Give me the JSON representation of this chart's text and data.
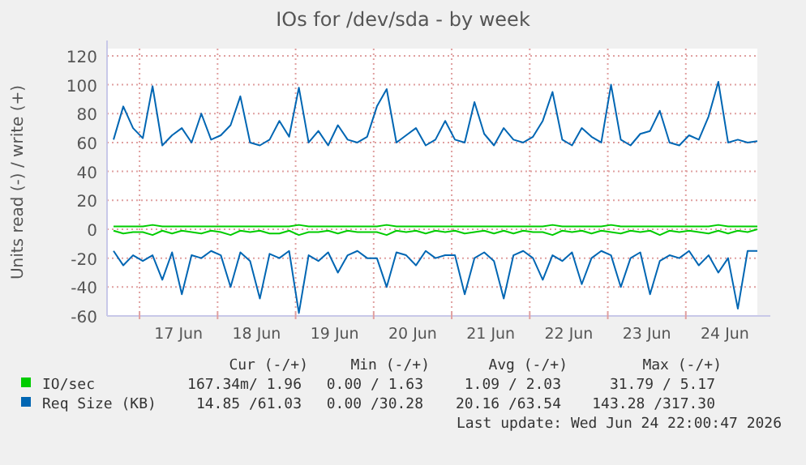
{
  "chart_data": {
    "type": "line",
    "title": "IOs for /dev/sda - by week",
    "ylabel": "Units read (-) / write (+)",
    "x": [
      "2026-06-16T16:00",
      "2026-06-16T19:00",
      "2026-06-16T22:00",
      "2026-06-17T01:00",
      "2026-06-17T04:00",
      "2026-06-17T07:00",
      "2026-06-17T10:00",
      "2026-06-17T13:00",
      "2026-06-17T16:00",
      "2026-06-17T19:00",
      "2026-06-17T22:00",
      "2026-06-18T01:00",
      "2026-06-18T04:00",
      "2026-06-18T07:00",
      "2026-06-18T10:00",
      "2026-06-18T13:00",
      "2026-06-18T16:00",
      "2026-06-18T19:00",
      "2026-06-18T22:00",
      "2026-06-19T01:00",
      "2026-06-19T04:00",
      "2026-06-19T07:00",
      "2026-06-19T10:00",
      "2026-06-19T13:00",
      "2026-06-19T16:00",
      "2026-06-19T19:00",
      "2026-06-19T22:00",
      "2026-06-20T01:00",
      "2026-06-20T04:00",
      "2026-06-20T07:00",
      "2026-06-20T10:00",
      "2026-06-20T13:00",
      "2026-06-20T16:00",
      "2026-06-20T19:00",
      "2026-06-20T22:00",
      "2026-06-21T01:00",
      "2026-06-21T04:00",
      "2026-06-21T07:00",
      "2026-06-21T10:00",
      "2026-06-21T13:00",
      "2026-06-21T16:00",
      "2026-06-21T19:00",
      "2026-06-21T22:00",
      "2026-06-22T01:00",
      "2026-06-22T04:00",
      "2026-06-22T07:00",
      "2026-06-22T10:00",
      "2026-06-22T13:00",
      "2026-06-22T16:00",
      "2026-06-22T19:00",
      "2026-06-22T22:00",
      "2026-06-23T01:00",
      "2026-06-23T04:00",
      "2026-06-23T07:00",
      "2026-06-23T10:00",
      "2026-06-23T13:00",
      "2026-06-23T16:00",
      "2026-06-23T19:00",
      "2026-06-23T22:00",
      "2026-06-24T01:00",
      "2026-06-24T04:00",
      "2026-06-24T07:00",
      "2026-06-24T10:00",
      "2026-06-24T13:00",
      "2026-06-24T16:00",
      "2026-06-24T19:00",
      "2026-06-24T22:00"
    ],
    "series": [
      {
        "name": "IO/sec",
        "color": "#00cc00",
        "values": [
          2,
          2,
          2,
          2,
          3,
          2,
          2,
          2,
          2,
          2,
          2,
          2,
          2,
          2,
          2,
          2,
          2,
          2,
          2,
          3,
          2,
          2,
          2,
          2,
          2,
          2,
          2,
          2,
          3,
          2,
          2,
          2,
          2,
          2,
          2,
          2,
          2,
          2,
          2,
          2,
          2,
          2,
          2,
          2,
          2,
          3,
          2,
          2,
          2,
          2,
          2,
          3,
          2,
          2,
          2,
          2,
          2,
          2,
          2,
          2,
          2,
          2,
          3,
          2,
          2,
          2,
          2
        ]
      },
      {
        "color": "#00cc00",
        "values": [
          -1,
          -3,
          -2,
          -2,
          -4,
          -1,
          -3,
          -1,
          -2,
          -3,
          -1,
          -2,
          -4,
          -1,
          -2,
          -1,
          -3,
          -3,
          -1,
          -4,
          -2,
          -2,
          -1,
          -3,
          -1,
          -2,
          -2,
          -2,
          -4,
          -1,
          -2,
          -1,
          -3,
          -1,
          -2,
          -1,
          -3,
          -2,
          -1,
          -3,
          -1,
          -3,
          -1,
          -2,
          -2,
          -4,
          -1,
          -2,
          -1,
          -3,
          -1,
          -2,
          -3,
          -1,
          -2,
          -1,
          -4,
          -1,
          -2,
          -1,
          -2,
          -3,
          -1,
          -3,
          -1,
          -2,
          0
        ]
      },
      {
        "name": "Req Size (KB)",
        "color": "#0066b3",
        "values": [
          62,
          85,
          70,
          63,
          99,
          58,
          65,
          70,
          60,
          80,
          62,
          65,
          72,
          92,
          60,
          58,
          62,
          75,
          64,
          98,
          60,
          68,
          58,
          72,
          62,
          60,
          64,
          85,
          97,
          60,
          65,
          70,
          58,
          62,
          75,
          62,
          60,
          88,
          66,
          58,
          70,
          62,
          60,
          64,
          75,
          95,
          62,
          58,
          70,
          64,
          60,
          100,
          62,
          58,
          66,
          68,
          82,
          60,
          58,
          65,
          62,
          78,
          102,
          60,
          62,
          60,
          61
        ]
      },
      {
        "color": "#0066b3",
        "values": [
          -15,
          -25,
          -18,
          -22,
          -18,
          -35,
          -16,
          -45,
          -18,
          -20,
          -15,
          -18,
          -40,
          -16,
          -22,
          -48,
          -17,
          -20,
          -15,
          -58,
          -18,
          -22,
          -16,
          -30,
          -18,
          -15,
          -20,
          -20,
          -40,
          -16,
          -18,
          -25,
          -15,
          -20,
          -18,
          -18,
          -45,
          -20,
          -16,
          -22,
          -48,
          -18,
          -15,
          -20,
          -35,
          -18,
          -22,
          -16,
          -38,
          -20,
          -15,
          -18,
          -40,
          -20,
          -16,
          -45,
          -22,
          -18,
          -20,
          -15,
          -25,
          -18,
          -30,
          -20,
          -55,
          -15,
          -15
        ]
      }
    ],
    "xlim": [
      "2026-06-16T14:00",
      "2026-06-24T22:00"
    ],
    "xticks": [
      {
        "value": "2026-06-17T00:00",
        "label": null
      },
      {
        "value": "2026-06-17T12:00",
        "label": "17 Jun"
      },
      {
        "value": "2026-06-18T00:00",
        "label": null
      },
      {
        "value": "2026-06-18T12:00",
        "label": "18 Jun"
      },
      {
        "value": "2026-06-19T00:00",
        "label": null
      },
      {
        "value": "2026-06-19T12:00",
        "label": "19 Jun"
      },
      {
        "value": "2026-06-20T00:00",
        "label": null
      },
      {
        "value": "2026-06-20T12:00",
        "label": "20 Jun"
      },
      {
        "value": "2026-06-21T00:00",
        "label": null
      },
      {
        "value": "2026-06-21T12:00",
        "label": "21 Jun"
      },
      {
        "value": "2026-06-22T00:00",
        "label": null
      },
      {
        "value": "2026-06-22T12:00",
        "label": "22 Jun"
      },
      {
        "value": "2026-06-23T00:00",
        "label": null
      },
      {
        "value": "2026-06-23T12:00",
        "label": "23 Jun"
      },
      {
        "value": "2026-06-24T00:00",
        "label": null
      },
      {
        "value": "2026-06-24T12:00",
        "label": "24 Jun"
      }
    ],
    "ylim": [
      -60,
      125
    ],
    "yticks": [
      -60,
      -40,
      -20,
      0,
      20,
      40,
      60,
      80,
      100,
      120
    ],
    "grid": true,
    "legend": "bottom",
    "annotations": [
      "Cur (-/+)",
      "Min (-/+)",
      "Avg (-/+)",
      "Max (-/+)",
      "167.34m/ 1.96",
      "0.00 / 1.63",
      "1.09 / 2.03",
      "31.79 / 5.17",
      "14.85 /61.03",
      "0.00 /30.28",
      "20.16 /63.54",
      "143.28 /317.30",
      "Last update: Wed Jun 24 22:00:47 2026"
    ]
  }
}
